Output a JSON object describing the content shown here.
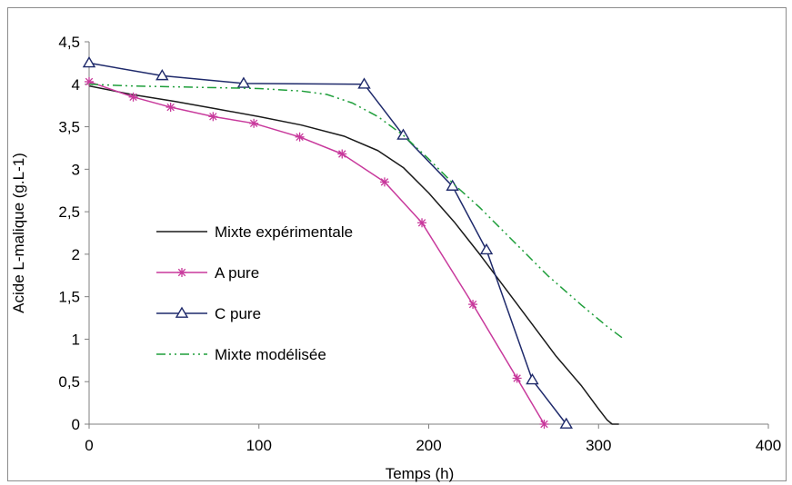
{
  "chart_data": {
    "type": "line",
    "xlabel": "Temps (h)",
    "ylabel": "Acide L-malique (g.L-1)",
    "xlim": [
      0,
      400
    ],
    "ylim": [
      0,
      4.5
    ],
    "xticks": [
      "0",
      "100",
      "200",
      "300",
      "400"
    ],
    "yticks": [
      "0",
      "0,5",
      "1",
      "1,5",
      "2",
      "2,5",
      "3",
      "3,5",
      "4",
      "4,5"
    ],
    "xtick_values": [
      0,
      100,
      200,
      300,
      400
    ],
    "ytick_values": [
      0,
      0.5,
      1,
      1.5,
      2,
      2.5,
      3,
      3.5,
      4,
      4.5
    ],
    "grid": false,
    "legend_position": "center-left",
    "series": [
      {
        "name": "Mixte expérimentale",
        "color": "#1a1a1a",
        "style": "solid",
        "marker": "none",
        "x": [
          0,
          25,
          50,
          75,
          100,
          125,
          150,
          170,
          185,
          200,
          215,
          230,
          245,
          260,
          275,
          290,
          300,
          305,
          308,
          312
        ],
        "y": [
          3.98,
          3.88,
          3.8,
          3.71,
          3.62,
          3.52,
          3.39,
          3.22,
          3.02,
          2.72,
          2.38,
          2.0,
          1.6,
          1.2,
          0.8,
          0.45,
          0.18,
          0.05,
          0.0,
          0.0
        ]
      },
      {
        "name": "A pure",
        "color": "#c8399c",
        "style": "solid",
        "marker": "asterisk",
        "x": [
          0,
          26,
          48,
          73,
          97,
          124,
          149,
          174,
          196,
          226,
          252,
          268
        ],
        "y": [
          4.03,
          3.85,
          3.73,
          3.62,
          3.54,
          3.38,
          3.18,
          2.85,
          2.37,
          1.41,
          0.54,
          0.0
        ]
      },
      {
        "name": "C pure",
        "color": "#1f2a6b",
        "style": "solid",
        "marker": "triangle",
        "x": [
          0,
          43,
          91,
          162,
          185,
          214,
          234,
          261,
          281
        ],
        "y": [
          4.25,
          4.1,
          4.01,
          4.0,
          3.4,
          2.8,
          2.05,
          0.52,
          0.0
        ]
      },
      {
        "name": "Mixte modélisée",
        "color": "#1e9e3a",
        "style": "dashdot",
        "marker": "none",
        "x": [
          0,
          25,
          50,
          75,
          100,
          125,
          140,
          155,
          170,
          185,
          200,
          215,
          230,
          250,
          270,
          290,
          305,
          315
        ],
        "y": [
          4.0,
          3.98,
          3.97,
          3.96,
          3.95,
          3.92,
          3.88,
          3.78,
          3.62,
          3.4,
          3.12,
          2.82,
          2.55,
          2.15,
          1.75,
          1.4,
          1.15,
          1.0
        ]
      }
    ]
  }
}
